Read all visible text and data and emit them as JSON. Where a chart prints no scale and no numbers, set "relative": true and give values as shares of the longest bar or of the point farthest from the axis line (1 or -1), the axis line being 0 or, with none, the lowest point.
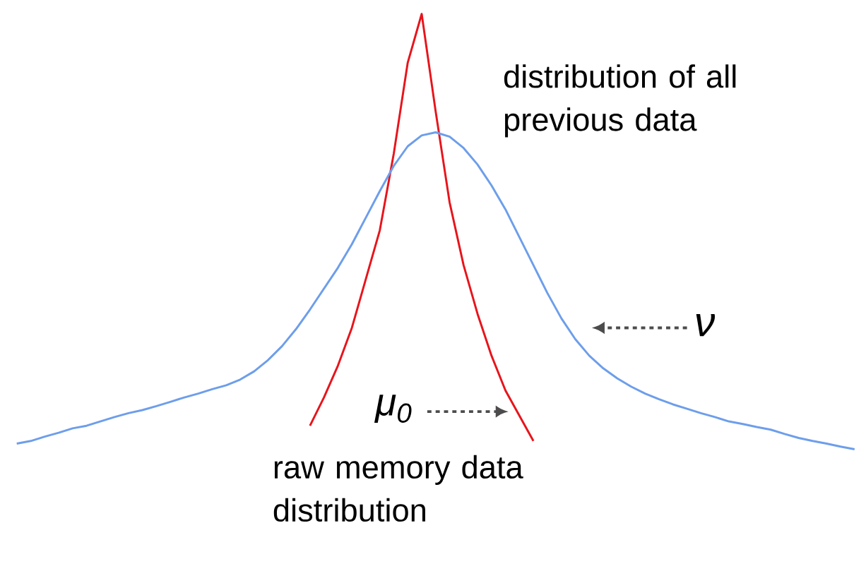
{
  "chart_data": {
    "type": "line",
    "relative": true,
    "categories": [
      null,
      null,
      null,
      null,
      null,
      null,
      null,
      null,
      null,
      null,
      null,
      null,
      null,
      null,
      null,
      null,
      null,
      null,
      null,
      null,
      null,
      null,
      null,
      null,
      null,
      null,
      null,
      null,
      null,
      null,
      null,
      null,
      null,
      null,
      null,
      null,
      null,
      null,
      null,
      null,
      null,
      null,
      null,
      null,
      null,
      null,
      null,
      null,
      null,
      null,
      null,
      null,
      null,
      null,
      null,
      null,
      null,
      null,
      null,
      null,
      null
    ],
    "series": [
      {
        "color": "#e8141b",
        "values": [
          null,
          null,
          null,
          null,
          null,
          null,
          null,
          null,
          null,
          null,
          null,
          null,
          null,
          null,
          null,
          null,
          null,
          null,
          null,
          null,
          null,
          0.054,
          0.119,
          0.192,
          0.279,
          0.391,
          0.503,
          0.679,
          0.888,
          1,
          0.776,
          0.567,
          0.423,
          0.311,
          0.215,
          0.135,
          0.077,
          0.019,
          null,
          null,
          null,
          null,
          null,
          null,
          null,
          null,
          null,
          null,
          null,
          null,
          null,
          null,
          null,
          null,
          null,
          null,
          null,
          null,
          null,
          null,
          null
        ]
      },
      {
        "color": "#6d9eeb",
        "values": [
          0.013,
          0.019,
          0.029,
          0.038,
          0.048,
          0.054,
          0.064,
          0.074,
          0.083,
          0.09,
          0.099,
          0.109,
          0.119,
          0.128,
          0.138,
          0.147,
          0.16,
          0.179,
          0.205,
          0.237,
          0.276,
          0.321,
          0.369,
          0.417,
          0.471,
          0.532,
          0.593,
          0.651,
          0.696,
          0.721,
          0.728,
          0.718,
          0.692,
          0.654,
          0.606,
          0.551,
          0.487,
          0.423,
          0.359,
          0.301,
          0.253,
          0.215,
          0.186,
          0.163,
          0.144,
          0.128,
          0.115,
          0.103,
          0.093,
          0.083,
          0.074,
          0.064,
          0.058,
          0.051,
          0.045,
          0.035,
          0.026,
          0.019,
          0.013,
          0.006,
          0
        ]
      }
    ],
    "annotations": [
      "distribution of all previous data",
      "ν",
      "μ$_{0}$",
      "raw memory data distribution"
    ]
  }
}
